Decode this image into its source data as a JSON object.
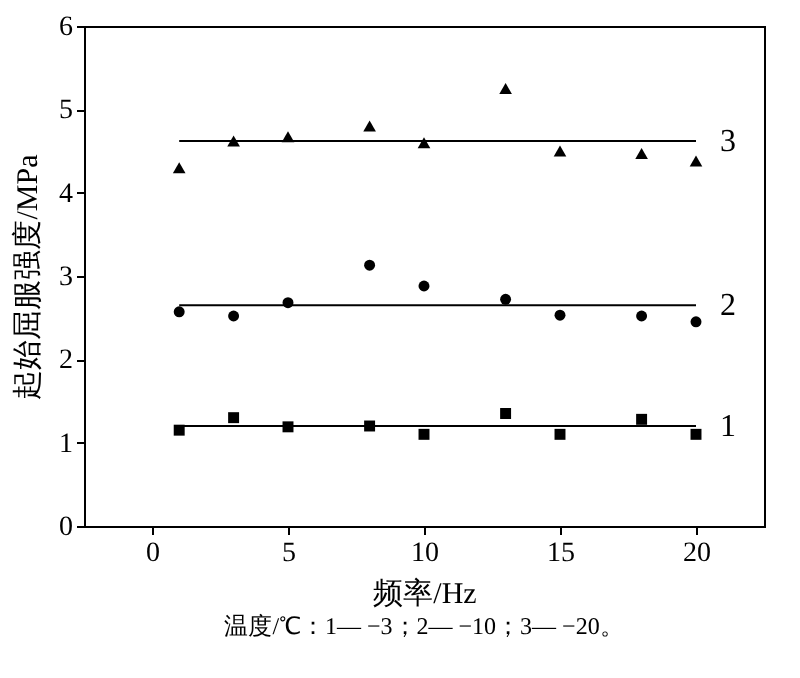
{
  "chart_data": {
    "type": "scatter",
    "xlabel": "频率/Hz",
    "ylabel": "起始屈服强度/MPa",
    "xlim": [
      -2.5,
      22.5
    ],
    "xticks": [
      0,
      5,
      10,
      15,
      20
    ],
    "ylim": [
      0,
      6
    ],
    "yticks": [
      0,
      1,
      2,
      3,
      4,
      5,
      6
    ],
    "grid": false,
    "x": [
      1,
      3,
      5,
      8,
      10,
      13,
      15,
      18,
      20
    ],
    "series": [
      {
        "color": "#000000",
        "marker": "square",
        "values": [
          1.15,
          1.3,
          1.19,
          1.2,
          1.1,
          1.35,
          1.1,
          1.28,
          1.1
        ]
      },
      {
        "color": "#000000",
        "marker": "circle",
        "values": [
          2.57,
          2.52,
          2.68,
          3.13,
          2.88,
          2.72,
          2.53,
          2.52,
          2.45
        ]
      },
      {
        "color": "#000000",
        "marker": "triangle",
        "values": [
          4.3,
          4.62,
          4.67,
          4.8,
          4.6,
          5.25,
          4.5,
          4.47,
          4.38
        ]
      },
      {
        "type": "line",
        "name": "1",
        "color": "#000000",
        "marker": "none",
        "values": [
          1.2,
          1.2,
          1.2,
          1.2,
          1.2,
          1.2,
          1.2,
          1.2,
          1.2
        ]
      },
      {
        "type": "line",
        "name": "2",
        "color": "#000000",
        "marker": "none",
        "values": [
          2.65,
          2.65,
          2.65,
          2.65,
          2.65,
          2.65,
          2.65,
          2.65,
          2.65
        ]
      },
      {
        "type": "line",
        "name": "3",
        "color": "#000000",
        "marker": "none",
        "values": [
          4.62,
          4.62,
          4.62,
          4.62,
          4.62,
          4.62,
          4.62,
          4.62,
          4.62
        ]
      }
    ],
    "annotations": [
      "温度/℃：1— −3；2— −10；3— −20。"
    ]
  }
}
